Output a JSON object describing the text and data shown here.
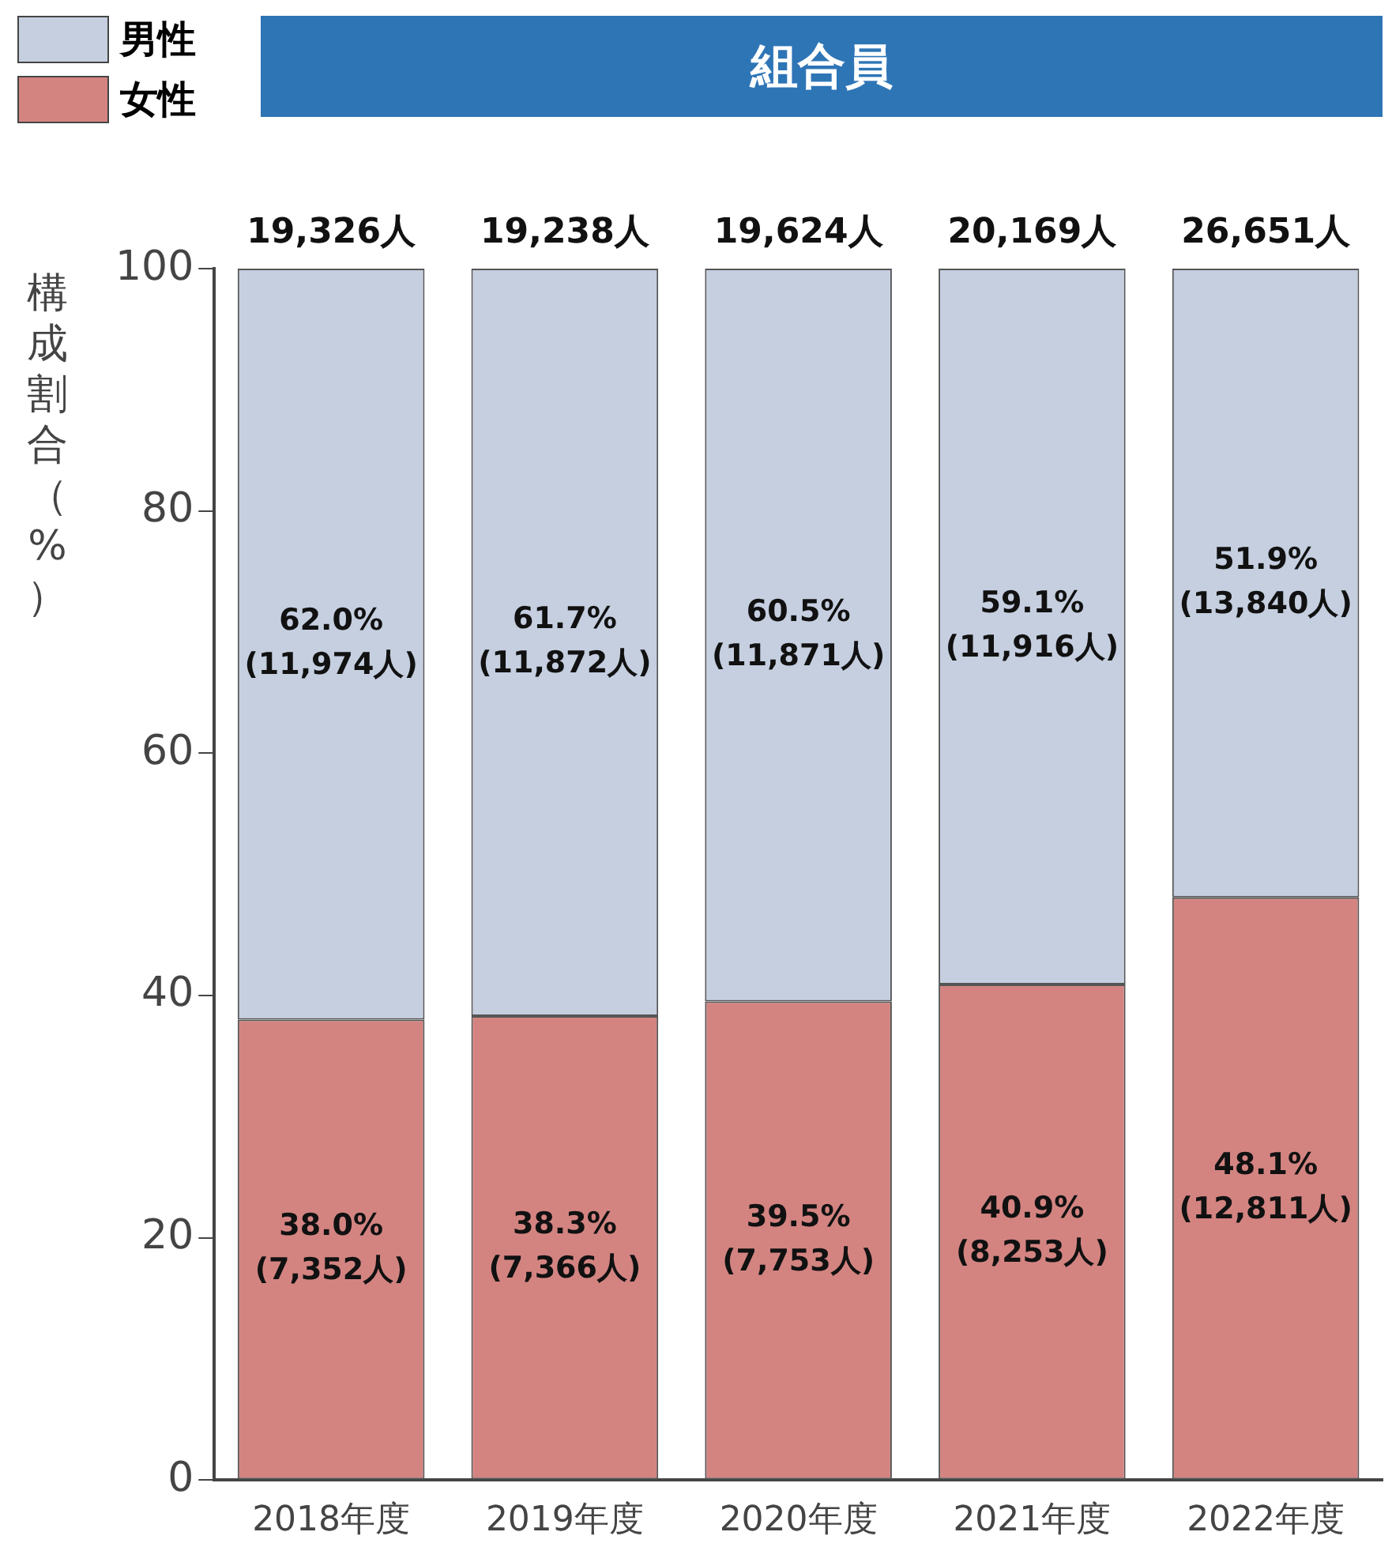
{
  "chart_data": {
    "type": "bar",
    "title": "組合員",
    "ylabel": "構成割合（%）",
    "stacked": true,
    "categories": [
      "2018年度",
      "2019年度",
      "2020年度",
      "2021年度",
      "2022年度"
    ],
    "series": [
      {
        "name": "女性",
        "color": "#d38481",
        "values": [
          38.0,
          38.3,
          39.5,
          40.9,
          48.1
        ],
        "value_labels": [
          "38.0%\n(7,352人)",
          "38.3%\n(7,366人)",
          "39.5%\n(7,753人)",
          "40.9%\n(8,253人)",
          "48.1%\n(12,811人)"
        ]
      },
      {
        "name": "男性",
        "color": "#c5cfe0",
        "values": [
          62.0,
          61.7,
          60.5,
          59.1,
          51.9
        ],
        "value_labels": [
          "62.0%\n(11,974人)",
          "61.7%\n(11,872人)",
          "60.5%\n(11,871人)",
          "59.1%\n(11,916人)",
          "51.9%\n(13,840人)"
        ]
      }
    ],
    "annotations": [
      {
        "text": "19,326人",
        "x": "2018年度",
        "y": 100
      },
      {
        "text": "19,238人",
        "x": "2019年度",
        "y": 100
      },
      {
        "text": "19,624人",
        "x": "2020年度",
        "y": 100
      },
      {
        "text": "20,169人",
        "x": "2021年度",
        "y": 100
      },
      {
        "text": "26,651人",
        "x": "2022年度",
        "y": 100
      }
    ],
    "ylim": [
      0,
      100
    ],
    "yticks": [
      0,
      20,
      40,
      60,
      80,
      100
    ],
    "grid": false,
    "legend": "top left"
  }
}
